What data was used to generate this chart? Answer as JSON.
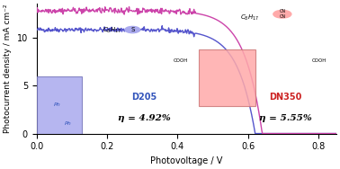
{
  "title": "",
  "xlabel": "Photovoltage / V",
  "ylabel": "Photocurrent density / mA cm⁻²",
  "xlim": [
    0,
    0.85
  ],
  "ylim": [
    0,
    13.5
  ],
  "yticks": [
    0,
    5,
    10
  ],
  "xticks": [
    0,
    0.2,
    0.4,
    0.6,
    0.8
  ],
  "D205": {
    "color": "#5555cc",
    "label": "D205",
    "jsc": 10.8,
    "voc": 0.62,
    "ff": 0.735,
    "noise_amp": 0.12
  },
  "DN350": {
    "color": "#cc44aa",
    "label": "DN350",
    "jsc": 12.8,
    "voc": 0.64,
    "ff": 0.68,
    "noise_amp": 0.15
  },
  "d205_label": "D205",
  "d205_eta": "η = 4.92%",
  "dn350_label": "DN350",
  "dn350_eta": "η = 5.55%",
  "d205_label_color": "#3355bb",
  "dn350_label_color": "#cc2222",
  "bg_color": "#ffffff",
  "panel_bg": "#ccccff",
  "panel_bg2": "#ffcccc",
  "d205_struct_color": "#3355bb",
  "dn350_struct_color": "#cc2222"
}
